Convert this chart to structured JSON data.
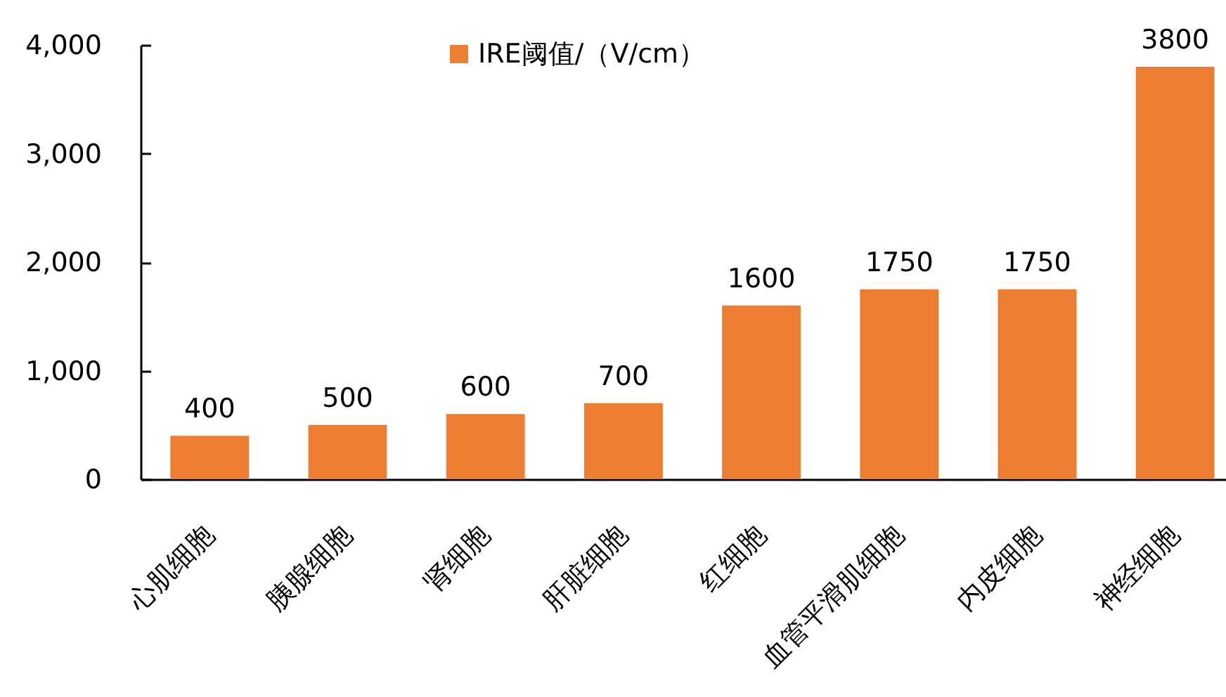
{
  "chart_data": {
    "type": "bar",
    "categories": [
      "心肌细胞",
      "胰腺细胞",
      "肾细胞",
      "肝脏细胞",
      "红细胞",
      "血管平滑肌细胞",
      "内皮细胞",
      "神经细胞"
    ],
    "series": [
      {
        "name": "IRE阈值/（V/cm）",
        "color": "#ed7d31",
        "values": [
          400,
          500,
          600,
          700,
          1600,
          1750,
          1750,
          3800
        ]
      }
    ],
    "ylim": [
      0,
      4000
    ],
    "yticks": [
      0,
      {
        "value": 1000,
        "label": "1,000"
      },
      {
        "value": 2000,
        "label": "2,000"
      },
      {
        "value": 3000,
        "label": "3,000"
      },
      {
        "value": 4000,
        "label": "4,000"
      }
    ],
    "legend": "top",
    "data_labels": true
  }
}
